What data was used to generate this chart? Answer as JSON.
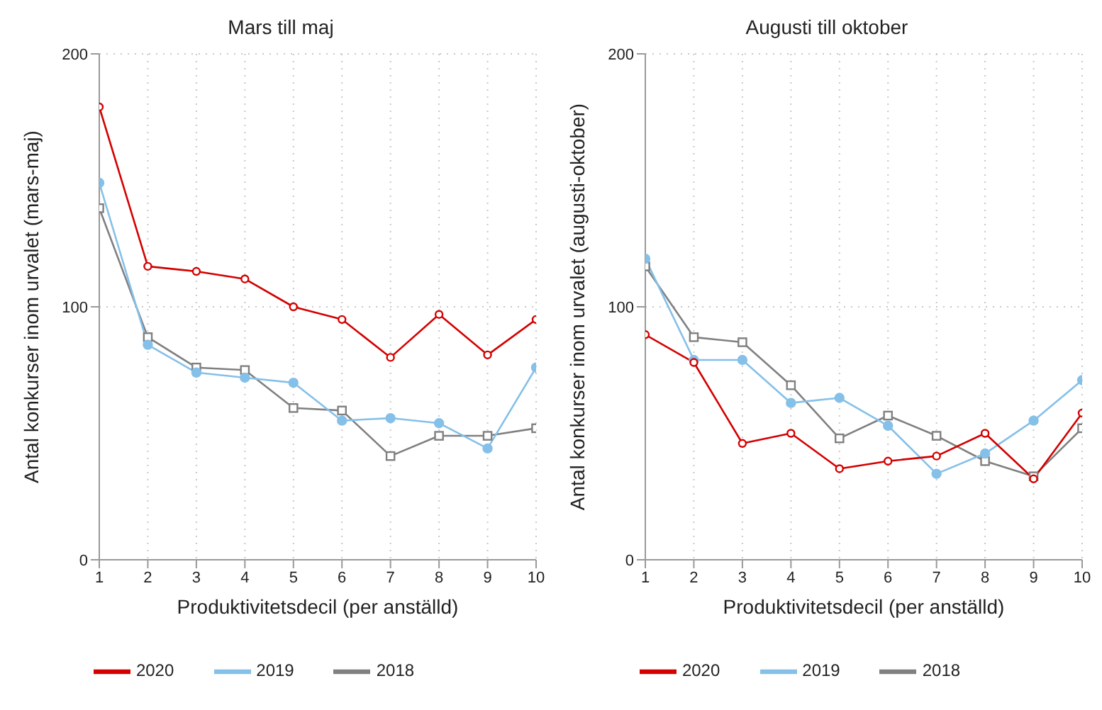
{
  "chart_data": [
    {
      "type": "line",
      "title": "Mars till maj",
      "xlabel": "Produktivitetsdecil (per anställd)",
      "ylabel": "Antal konkurser inom urvalet (mars-maj)",
      "x": [
        1,
        2,
        3,
        4,
        5,
        6,
        7,
        8,
        9,
        10
      ],
      "xlim": [
        1,
        10
      ],
      "xticks": [
        1,
        2,
        3,
        4,
        5,
        6,
        7,
        8,
        9,
        10
      ],
      "ylim": [
        0,
        200
      ],
      "yticks": [
        0,
        100,
        200
      ],
      "grid": true,
      "legend": "bottom",
      "series": [
        {
          "name": "2020",
          "color": "#d40000",
          "marker": "circle",
          "values": [
            179,
            116,
            114,
            111,
            100,
            95,
            80,
            97,
            81,
            95
          ]
        },
        {
          "name": "2019",
          "color": "#85c0e9",
          "marker": "circle",
          "values": [
            149,
            85,
            74,
            72,
            70,
            55,
            56,
            54,
            44,
            76
          ]
        },
        {
          "name": "2018",
          "color": "#808080",
          "marker": "square",
          "values": [
            139,
            88,
            76,
            75,
            60,
            59,
            41,
            49,
            49,
            52
          ]
        }
      ]
    },
    {
      "type": "line",
      "title": "Augusti till oktober",
      "xlabel": "Produktivitetsdecil (per anställd)",
      "ylabel": "Antal konkurser inom urvalet (augusti-oktober)",
      "x": [
        1,
        2,
        3,
        4,
        5,
        6,
        7,
        8,
        9,
        10
      ],
      "xlim": [
        1,
        10
      ],
      "xticks": [
        1,
        2,
        3,
        4,
        5,
        6,
        7,
        8,
        9,
        10
      ],
      "ylim": [
        0,
        200
      ],
      "yticks": [
        0,
        100,
        200
      ],
      "grid": true,
      "legend": "bottom",
      "series": [
        {
          "name": "2020",
          "color": "#d40000",
          "marker": "circle",
          "values": [
            89,
            78,
            46,
            50,
            36,
            39,
            41,
            50,
            32,
            58
          ]
        },
        {
          "name": "2019",
          "color": "#85c0e9",
          "marker": "circle",
          "values": [
            119,
            79,
            79,
            62,
            64,
            53,
            34,
            42,
            55,
            71
          ]
        },
        {
          "name": "2018",
          "color": "#808080",
          "marker": "square",
          "values": [
            116,
            88,
            86,
            69,
            48,
            57,
            49,
            39,
            33,
            52
          ]
        }
      ]
    }
  ]
}
